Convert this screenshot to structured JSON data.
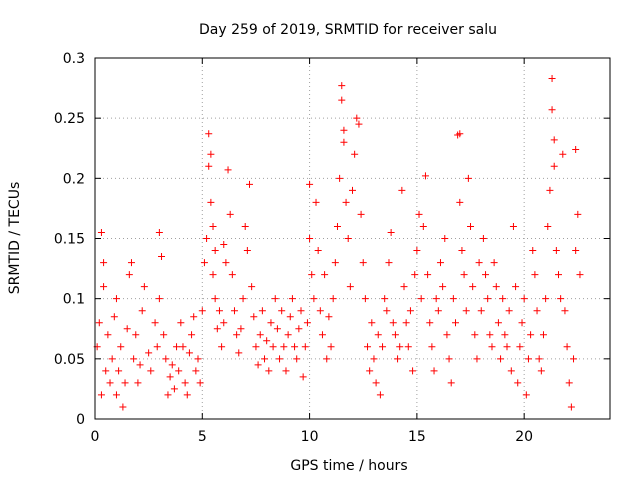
{
  "chart_data": {
    "type": "scatter",
    "title": "Day 259 of 2019, SRMTID for receiver salu",
    "xlabel": "GPS time / hours",
    "ylabel": "SRMTID / TECUs",
    "xlim": [
      0,
      24
    ],
    "ylim": [
      0,
      0.3
    ],
    "x_ticks": [
      0,
      5,
      10,
      15,
      20
    ],
    "y_ticks": [
      0,
      0.05,
      0.1,
      0.15,
      0.2,
      0.25,
      0.3
    ],
    "x_tick_labels": [
      "0",
      "5",
      "10",
      "15",
      "20"
    ],
    "y_tick_labels": [
      "0",
      "0.05",
      "0.1",
      "0.15",
      "0.2",
      "0.25",
      "0.3"
    ],
    "grid": true,
    "marker": "plus",
    "color": "#ff0000",
    "series": [
      {
        "values": [
          [
            0.1,
            0.06
          ],
          [
            0.2,
            0.08
          ],
          [
            0.3,
            0.02
          ],
          [
            0.3,
            0.155
          ],
          [
            0.4,
            0.13
          ],
          [
            0.4,
            0.11
          ],
          [
            0.5,
            0.04
          ],
          [
            0.6,
            0.07
          ],
          [
            0.7,
            0.03
          ],
          [
            0.8,
            0.05
          ],
          [
            0.9,
            0.085
          ],
          [
            1.0,
            0.1
          ],
          [
            1.0,
            0.02
          ],
          [
            1.1,
            0.04
          ],
          [
            1.2,
            0.06
          ],
          [
            1.3,
            0.01
          ],
          [
            1.4,
            0.03
          ],
          [
            1.5,
            0.075
          ],
          [
            1.6,
            0.12
          ],
          [
            1.7,
            0.13
          ],
          [
            1.8,
            0.05
          ],
          [
            1.9,
            0.07
          ],
          [
            2.0,
            0.03
          ],
          [
            2.1,
            0.045
          ],
          [
            2.2,
            0.09
          ],
          [
            2.3,
            0.11
          ],
          [
            2.5,
            0.055
          ],
          [
            2.6,
            0.04
          ],
          [
            2.8,
            0.08
          ],
          [
            2.9,
            0.06
          ],
          [
            3.0,
            0.1
          ],
          [
            3.0,
            0.155
          ],
          [
            3.1,
            0.135
          ],
          [
            3.2,
            0.07
          ],
          [
            3.3,
            0.05
          ],
          [
            3.4,
            0.02
          ],
          [
            3.5,
            0.035
          ],
          [
            3.6,
            0.045
          ],
          [
            3.7,
            0.025
          ],
          [
            3.8,
            0.06
          ],
          [
            3.9,
            0.04
          ],
          [
            4.0,
            0.08
          ],
          [
            4.1,
            0.06
          ],
          [
            4.2,
            0.03
          ],
          [
            4.3,
            0.02
          ],
          [
            4.4,
            0.055
          ],
          [
            4.5,
            0.07
          ],
          [
            4.6,
            0.085
          ],
          [
            4.7,
            0.04
          ],
          [
            4.8,
            0.05
          ],
          [
            4.9,
            0.03
          ],
          [
            5.0,
            0.09
          ],
          [
            5.1,
            0.13
          ],
          [
            5.2,
            0.15
          ],
          [
            5.3,
            0.237
          ],
          [
            5.3,
            0.21
          ],
          [
            5.4,
            0.22
          ],
          [
            5.4,
            0.18
          ],
          [
            5.5,
            0.16
          ],
          [
            5.5,
            0.12
          ],
          [
            5.6,
            0.14
          ],
          [
            5.6,
            0.1
          ],
          [
            5.7,
            0.075
          ],
          [
            5.8,
            0.09
          ],
          [
            5.9,
            0.06
          ],
          [
            6.0,
            0.08
          ],
          [
            6.0,
            0.145
          ],
          [
            6.1,
            0.13
          ],
          [
            6.2,
            0.207
          ],
          [
            6.3,
            0.17
          ],
          [
            6.4,
            0.12
          ],
          [
            6.5,
            0.09
          ],
          [
            6.6,
            0.07
          ],
          [
            6.7,
            0.055
          ],
          [
            6.8,
            0.075
          ],
          [
            6.9,
            0.1
          ],
          [
            7.0,
            0.16
          ],
          [
            7.1,
            0.14
          ],
          [
            7.2,
            0.195
          ],
          [
            7.3,
            0.11
          ],
          [
            7.4,
            0.085
          ],
          [
            7.5,
            0.06
          ],
          [
            7.6,
            0.045
          ],
          [
            7.7,
            0.07
          ],
          [
            7.8,
            0.09
          ],
          [
            7.9,
            0.05
          ],
          [
            8.0,
            0.065
          ],
          [
            8.1,
            0.04
          ],
          [
            8.2,
            0.08
          ],
          [
            8.3,
            0.06
          ],
          [
            8.4,
            0.1
          ],
          [
            8.5,
            0.075
          ],
          [
            8.6,
            0.05
          ],
          [
            8.7,
            0.09
          ],
          [
            8.8,
            0.06
          ],
          [
            8.9,
            0.04
          ],
          [
            9.0,
            0.07
          ],
          [
            9.1,
            0.085
          ],
          [
            9.2,
            0.1
          ],
          [
            9.3,
            0.06
          ],
          [
            9.4,
            0.05
          ],
          [
            9.5,
            0.075
          ],
          [
            9.6,
            0.09
          ],
          [
            9.7,
            0.035
          ],
          [
            9.8,
            0.06
          ],
          [
            9.9,
            0.08
          ],
          [
            10.0,
            0.195
          ],
          [
            10.0,
            0.15
          ],
          [
            10.1,
            0.12
          ],
          [
            10.2,
            0.1
          ],
          [
            10.3,
            0.18
          ],
          [
            10.4,
            0.14
          ],
          [
            10.5,
            0.09
          ],
          [
            10.6,
            0.07
          ],
          [
            10.7,
            0.12
          ],
          [
            10.8,
            0.05
          ],
          [
            10.9,
            0.085
          ],
          [
            11.0,
            0.06
          ],
          [
            11.1,
            0.1
          ],
          [
            11.2,
            0.13
          ],
          [
            11.3,
            0.16
          ],
          [
            11.4,
            0.2
          ],
          [
            11.5,
            0.277
          ],
          [
            11.5,
            0.265
          ],
          [
            11.6,
            0.24
          ],
          [
            11.6,
            0.23
          ],
          [
            11.7,
            0.18
          ],
          [
            11.8,
            0.15
          ],
          [
            11.9,
            0.11
          ],
          [
            12.0,
            0.19
          ],
          [
            12.1,
            0.22
          ],
          [
            12.2,
            0.25
          ],
          [
            12.3,
            0.245
          ],
          [
            12.4,
            0.17
          ],
          [
            12.5,
            0.13
          ],
          [
            12.6,
            0.1
          ],
          [
            12.7,
            0.06
          ],
          [
            12.8,
            0.04
          ],
          [
            12.9,
            0.08
          ],
          [
            13.0,
            0.05
          ],
          [
            13.1,
            0.03
          ],
          [
            13.2,
            0.07
          ],
          [
            13.3,
            0.02
          ],
          [
            13.4,
            0.06
          ],
          [
            13.5,
            0.1
          ],
          [
            13.6,
            0.09
          ],
          [
            13.7,
            0.13
          ],
          [
            13.8,
            0.155
          ],
          [
            13.9,
            0.08
          ],
          [
            14.0,
            0.07
          ],
          [
            14.1,
            0.05
          ],
          [
            14.2,
            0.06
          ],
          [
            14.3,
            0.19
          ],
          [
            14.4,
            0.11
          ],
          [
            14.5,
            0.08
          ],
          [
            14.6,
            0.06
          ],
          [
            14.7,
            0.09
          ],
          [
            14.8,
            0.04
          ],
          [
            14.9,
            0.12
          ],
          [
            15.0,
            0.14
          ],
          [
            15.1,
            0.17
          ],
          [
            15.2,
            0.1
          ],
          [
            15.3,
            0.16
          ],
          [
            15.4,
            0.202
          ],
          [
            15.5,
            0.12
          ],
          [
            15.6,
            0.08
          ],
          [
            15.7,
            0.06
          ],
          [
            15.8,
            0.04
          ],
          [
            15.9,
            0.1
          ],
          [
            16.0,
            0.09
          ],
          [
            16.1,
            0.13
          ],
          [
            16.2,
            0.11
          ],
          [
            16.3,
            0.15
          ],
          [
            16.4,
            0.07
          ],
          [
            16.5,
            0.05
          ],
          [
            16.6,
            0.03
          ],
          [
            16.7,
            0.1
          ],
          [
            16.8,
            0.08
          ],
          [
            16.9,
            0.236
          ],
          [
            17.0,
            0.237
          ],
          [
            17.0,
            0.18
          ],
          [
            17.1,
            0.14
          ],
          [
            17.2,
            0.12
          ],
          [
            17.3,
            0.09
          ],
          [
            17.4,
            0.2
          ],
          [
            17.5,
            0.16
          ],
          [
            17.6,
            0.11
          ],
          [
            17.7,
            0.07
          ],
          [
            17.8,
            0.05
          ],
          [
            17.9,
            0.13
          ],
          [
            18.0,
            0.09
          ],
          [
            18.1,
            0.15
          ],
          [
            18.2,
            0.12
          ],
          [
            18.3,
            0.1
          ],
          [
            18.4,
            0.07
          ],
          [
            18.5,
            0.06
          ],
          [
            18.6,
            0.13
          ],
          [
            18.7,
            0.11
          ],
          [
            18.8,
            0.08
          ],
          [
            18.9,
            0.05
          ],
          [
            19.0,
            0.1
          ],
          [
            19.1,
            0.07
          ],
          [
            19.2,
            0.06
          ],
          [
            19.3,
            0.09
          ],
          [
            19.4,
            0.04
          ],
          [
            19.5,
            0.16
          ],
          [
            19.6,
            0.11
          ],
          [
            19.7,
            0.03
          ],
          [
            19.8,
            0.06
          ],
          [
            19.9,
            0.08
          ],
          [
            20.0,
            0.1
          ],
          [
            20.1,
            0.02
          ],
          [
            20.2,
            0.05
          ],
          [
            20.3,
            0.07
          ],
          [
            20.4,
            0.14
          ],
          [
            20.5,
            0.12
          ],
          [
            20.6,
            0.09
          ],
          [
            20.7,
            0.05
          ],
          [
            20.8,
            0.04
          ],
          [
            20.9,
            0.07
          ],
          [
            21.0,
            0.1
          ],
          [
            21.1,
            0.16
          ],
          [
            21.2,
            0.19
          ],
          [
            21.3,
            0.283
          ],
          [
            21.3,
            0.257
          ],
          [
            21.4,
            0.232
          ],
          [
            21.4,
            0.21
          ],
          [
            21.5,
            0.14
          ],
          [
            21.6,
            0.12
          ],
          [
            21.7,
            0.1
          ],
          [
            21.8,
            0.22
          ],
          [
            21.9,
            0.09
          ],
          [
            22.0,
            0.06
          ],
          [
            22.1,
            0.03
          ],
          [
            22.2,
            0.01
          ],
          [
            22.3,
            0.05
          ],
          [
            22.4,
            0.224
          ],
          [
            22.4,
            0.14
          ],
          [
            22.5,
            0.17
          ],
          [
            22.6,
            0.12
          ]
        ]
      }
    ]
  }
}
